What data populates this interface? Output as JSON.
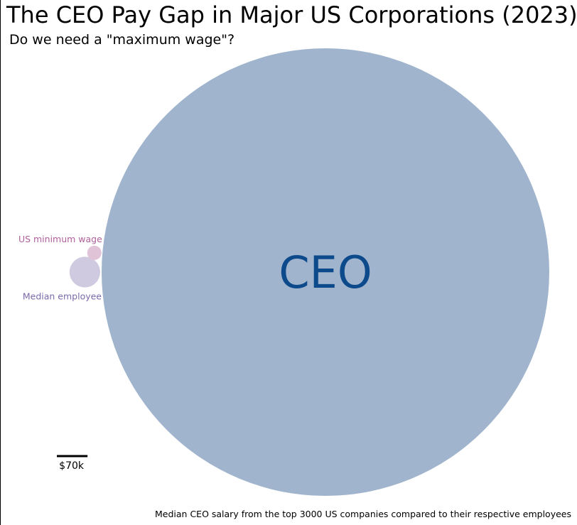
{
  "title": "The CEO Pay Gap in Major US Corporations (2023)",
  "subtitle": "Do we need a \"maximum wage\"?",
  "caption": "Median CEO salary from the top 3000 US companies compared to their respective employees",
  "chart_data": {
    "type": "bubble",
    "encoding": "circle area proportional to annual pay",
    "series": [
      {
        "name": "CEO",
        "value": 14900000,
        "color": "#a0b5cd",
        "label_color": "#0d4a8c"
      },
      {
        "name": "Median employee",
        "value": 70000,
        "color": "#cfcadf",
        "label_color": "#7b6aa8"
      },
      {
        "name": "US minimum wage",
        "value": 15080,
        "color": "#e0c3d6",
        "label_color": "#b0609a"
      }
    ],
    "scale_bar": {
      "label": "$70k",
      "value": 70000
    }
  }
}
